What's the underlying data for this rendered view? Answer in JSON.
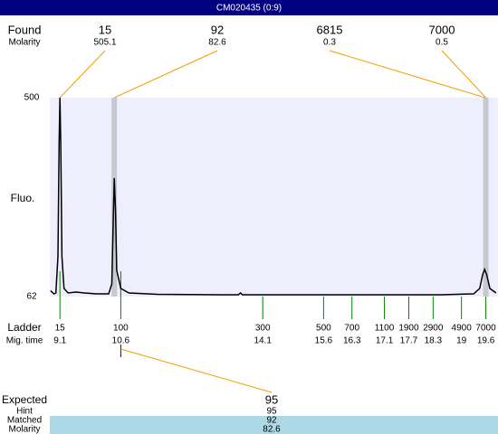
{
  "header": {
    "title": "CM020435 (0:9)"
  },
  "chart_data": {
    "type": "line",
    "y_label": "Fluo.",
    "xlim": [
      8.85,
      19.9
    ],
    "ylim": [
      62,
      500
    ],
    "yticks": [
      62,
      500
    ],
    "color": "#000000",
    "background": "#eeeefc",
    "x": [
      8.87,
      8.95,
      9.0,
      9.05,
      9.08,
      9.1,
      9.12,
      9.15,
      9.2,
      9.3,
      9.5,
      9.7,
      10.0,
      10.3,
      10.38,
      10.42,
      10.44,
      10.47,
      10.5,
      10.6,
      10.8,
      11.5,
      13.0,
      13.5,
      13.55,
      13.6,
      15.0,
      17.0,
      18.5,
      19.3,
      19.45,
      19.52,
      19.57,
      19.62,
      19.7,
      19.85
    ],
    "values": [
      75,
      68,
      70,
      150,
      400,
      500,
      400,
      150,
      80,
      70,
      72,
      70,
      68,
      68,
      90,
      250,
      323,
      250,
      120,
      80,
      70,
      67,
      66,
      66,
      70,
      66,
      66,
      66,
      66,
      68,
      80,
      110,
      122,
      110,
      80,
      70
    ]
  },
  "found": {
    "label": "Found",
    "sublabel": "Molarity",
    "peaks": [
      {
        "size": "15",
        "molarity": "505.1",
        "time": 9.1,
        "highlight": false
      },
      {
        "size": "92",
        "molarity": "82.6",
        "time": 10.44,
        "highlight": true
      },
      {
        "size": "6815",
        "molarity": "0.3",
        "time": 19.58,
        "highlight": false
      },
      {
        "size": "7000",
        "molarity": "0.5",
        "time": 19.6,
        "highlight": true
      }
    ]
  },
  "ladder": {
    "label": "Ladder",
    "sublabel": "Mig. time",
    "sizes": [
      "15",
      "100",
      "300",
      "500",
      "700",
      "1100",
      "1900",
      "2900",
      "4900",
      "7000"
    ],
    "times": [
      9.1,
      10.6,
      14.1,
      15.6,
      16.3,
      17.1,
      17.7,
      18.3,
      19,
      19.6
    ]
  },
  "expected": {
    "label": "Expected",
    "value": "95",
    "rows": [
      [
        "Hint",
        "95"
      ],
      [
        "Matched",
        "92"
      ],
      [
        "Molarity",
        "82.6"
      ]
    ]
  }
}
